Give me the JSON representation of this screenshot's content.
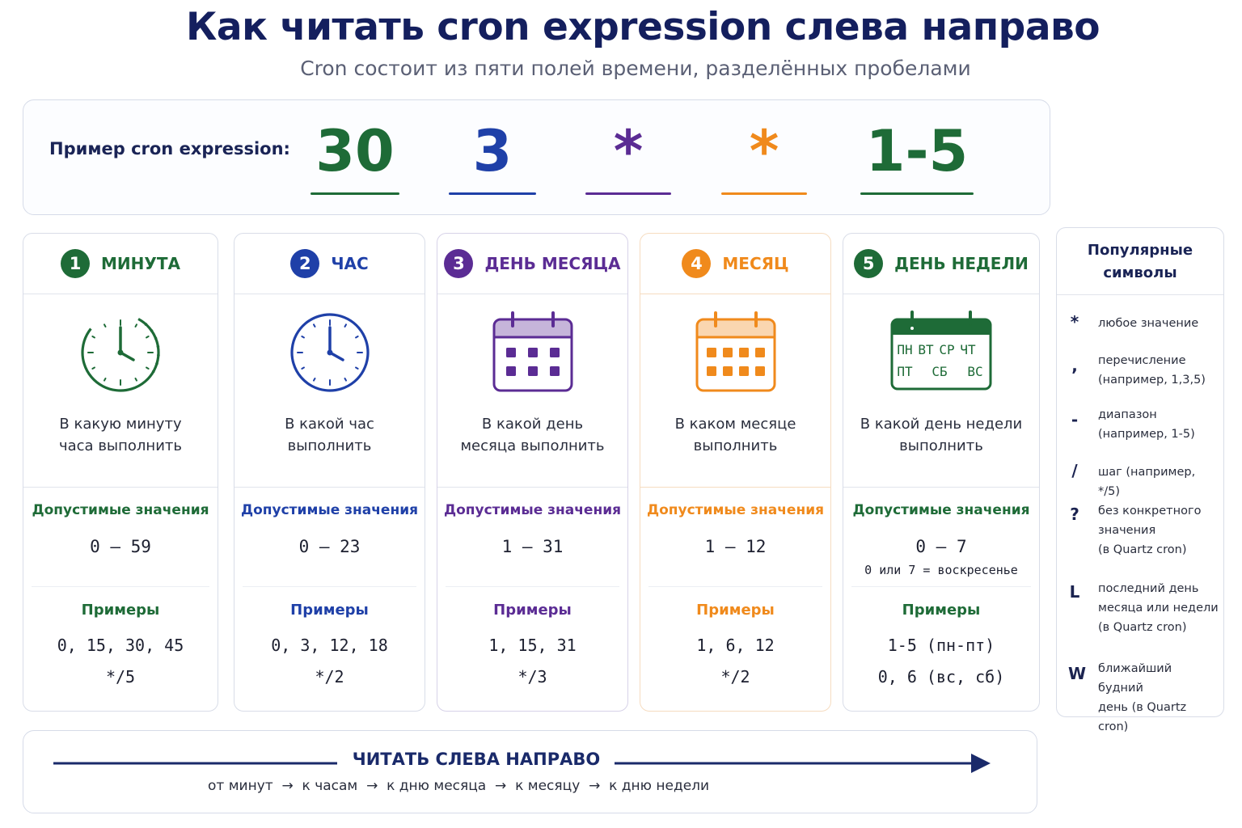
{
  "title": "Как читать cron expression слева направо",
  "subtitle": "Cron состоит из пяти полей времени, разделённых пробелами",
  "example": {
    "label": "Пример cron expression:",
    "tokens": [
      {
        "text": "30",
        "color": "#1e6b37"
      },
      {
        "text": "3",
        "color": "#1f40a8"
      },
      {
        "text": "*",
        "color": "#5b2c94"
      },
      {
        "text": "*",
        "color": "#f08a1c"
      },
      {
        "text": "1-5",
        "color": "#1e6b37"
      }
    ]
  },
  "fields": [
    {
      "number": "1",
      "name": "МИНУТА",
      "color": "#1e6b37",
      "icon": "clock-icon",
      "desc": [
        "В какую минуту",
        "часа выполнить"
      ],
      "allowed_label": "Допустимые значения",
      "range": "0 – 59",
      "note": "",
      "examples_label": "Примеры",
      "examples": [
        "0, 15, 30, 45",
        "*/5"
      ]
    },
    {
      "number": "2",
      "name": "ЧАС",
      "color": "#1f40a8",
      "icon": "clock-icon",
      "desc": [
        "В какой час",
        "выполнить"
      ],
      "allowed_label": "Допустимые значения",
      "range": "0 – 23",
      "note": "",
      "examples_label": "Примеры",
      "examples": [
        "0, 3, 12, 18",
        "*/2"
      ]
    },
    {
      "number": "3",
      "name": "ДЕНЬ МЕСЯЦА",
      "color": "#5b2c94",
      "icon": "calendar-icon",
      "desc": [
        "В какой день",
        "месяца выполнить"
      ],
      "allowed_label": "Допустимые значения",
      "range": "1 – 31",
      "note": "",
      "examples_label": "Примеры",
      "examples": [
        "1, 15, 31",
        "*/3"
      ]
    },
    {
      "number": "4",
      "name": "МЕСЯЦ",
      "color": "#f08a1c",
      "icon": "calendar-icon",
      "desc": [
        "В каком месяце",
        "выполнить"
      ],
      "allowed_label": "Допустимые значения",
      "range": "1 – 12",
      "note": "",
      "examples_label": "Примеры",
      "examples": [
        "1, 6, 12",
        "*/2"
      ]
    },
    {
      "number": "5",
      "name": "ДЕНЬ НЕДЕЛИ",
      "color": "#1e6b37",
      "icon": "week-calendar-icon",
      "desc": [
        "В какой день недели",
        "выполнить"
      ],
      "allowed_label": "Допустимые значения",
      "range": "0 – 7",
      "note": "0 или 7 = воскресенье",
      "examples_label": "Примеры",
      "examples": [
        "1-5 (пн-пт)",
        "0, 6 (вс, сб)"
      ]
    }
  ],
  "weekdays": {
    "row1": [
      "ПН",
      "ВТ",
      "СР",
      "ЧТ"
    ],
    "row2": [
      "ПТ",
      "СБ",
      "ВС"
    ]
  },
  "symbols": {
    "title": [
      "Популярные",
      "символы"
    ],
    "items": [
      {
        "char": "*",
        "desc": [
          "любое значение"
        ]
      },
      {
        "char": ",",
        "desc": [
          "перечисление",
          "(например, 1,3,5)"
        ]
      },
      {
        "char": "-",
        "desc": [
          "диапазон",
          "(например, 1-5)"
        ]
      },
      {
        "char": "/",
        "desc": [
          "шаг (например, */5)"
        ]
      },
      {
        "char": "?",
        "desc": [
          "без конкретного",
          "значения",
          "(в Quartz cron)"
        ]
      },
      {
        "char": "L",
        "desc": [
          "последний день",
          "месяца или недели",
          "(в Quartz cron)"
        ]
      },
      {
        "char": "W",
        "desc": [
          "ближайший будний",
          "день (в Quartz cron)"
        ]
      }
    ]
  },
  "reading": {
    "title": "ЧИТАТЬ СЛЕВА НАПРАВО",
    "steps": [
      "от минут",
      "к часам",
      "к дню месяца",
      "к месяцу",
      "к дню недели"
    ],
    "arrow_color": "#1a2a6a"
  }
}
